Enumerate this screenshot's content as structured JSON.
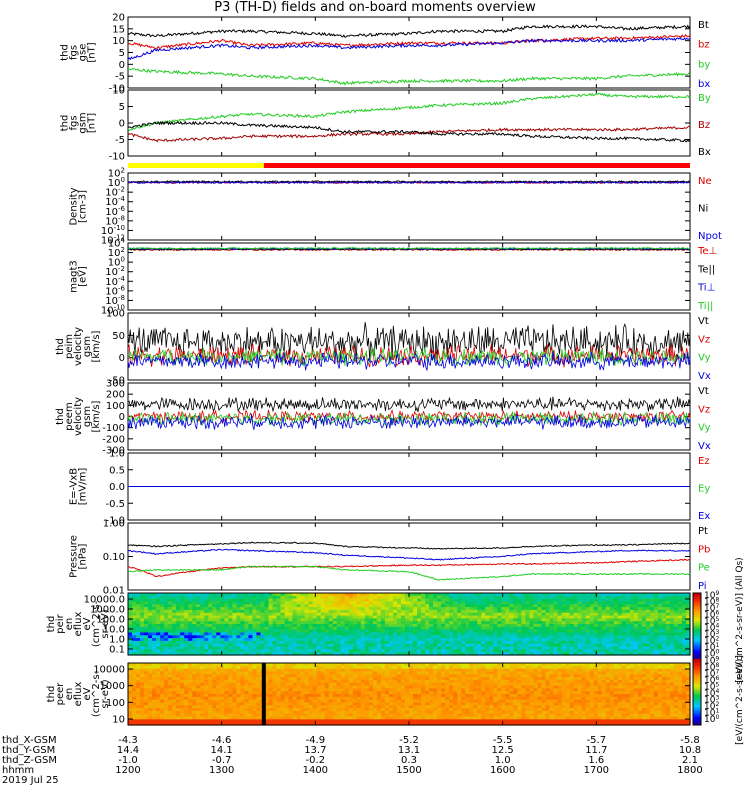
{
  "title": "P3 (TH-D) fields and on-board moments overview",
  "colors": {
    "black": "#000000",
    "red": "#e00000",
    "green": "#22cc22",
    "blue": "#0000e0",
    "darkred": "#a00000",
    "yellow": "#ffff00",
    "barred": "#ff0000"
  },
  "chart_data": [
    {
      "type": "line",
      "panel": "fgs-gse",
      "ylabel": [
        "thd",
        "fgs",
        "gse",
        "[nT]"
      ],
      "ylim": [
        -10,
        20
      ],
      "yticks": [
        "20",
        "15",
        "10",
        "5",
        "0",
        "-5",
        "-10"
      ],
      "x": [
        1200,
        1230,
        1300,
        1330,
        1400,
        1430,
        1500,
        1530,
        1600,
        1630,
        1700,
        1730,
        1800
      ],
      "series": [
        {
          "name": "Bt",
          "color": "#000000",
          "values": [
            13,
            12,
            14,
            14,
            13,
            12,
            13,
            14,
            14,
            16,
            16,
            15,
            16
          ]
        },
        {
          "name": "bz",
          "color": "#e00000",
          "values": [
            9,
            7,
            10,
            8,
            9,
            8,
            9,
            9,
            9,
            10,
            11,
            11,
            12
          ]
        },
        {
          "name": "by",
          "color": "#22cc22",
          "values": [
            -2,
            -3,
            -4,
            -5,
            -6,
            -8,
            -7,
            -7,
            -7,
            -6,
            -6,
            -5,
            -4
          ]
        },
        {
          "name": "bx",
          "color": "#0000e0",
          "values": [
            2,
            6,
            8,
            7,
            8,
            7,
            8,
            8,
            9,
            10,
            10,
            10,
            11
          ]
        }
      ]
    },
    {
      "type": "line",
      "panel": "fgs-gsm",
      "ylabel": [
        "thd",
        "fgs",
        "gsm",
        "[nT]"
      ],
      "ylim": [
        -15,
        15
      ],
      "yticks": [
        "10",
        "5",
        "0",
        "-5",
        "-10"
      ],
      "x": [
        1200,
        1230,
        1300,
        1330,
        1400,
        1430,
        1500,
        1530,
        1600,
        1630,
        1700,
        1730,
        1800
      ],
      "series": [
        {
          "name": "By",
          "color": "#22cc22",
          "values": [
            -3,
            0,
            3,
            4,
            3,
            5,
            7,
            8,
            9,
            11,
            13,
            12,
            12
          ]
        },
        {
          "name": "Bz",
          "color": "#a00000",
          "values": [
            -5,
            -8,
            -7,
            -6,
            -6,
            -5,
            -5,
            -4,
            -3,
            -3,
            -3,
            -3,
            -2
          ]
        },
        {
          "name": "Bx",
          "color": "#000000",
          "values": [
            -2,
            0,
            0,
            -1,
            -2,
            -4,
            -4,
            -5,
            -5,
            -6,
            -7,
            -7,
            -8
          ]
        }
      ]
    },
    {
      "type": "bar",
      "panel": "mode-bar",
      "segments": [
        {
          "from": 1200,
          "to": 1345,
          "color": "#ffff00"
        },
        {
          "from": 1345,
          "to": 1800,
          "color": "#ff0000"
        }
      ]
    },
    {
      "type": "line",
      "panel": "density",
      "scale": "log",
      "ylabel": [
        "Density",
        "[cm-3]"
      ],
      "ylim": [
        -12,
        2
      ],
      "yticks": [
        "10^2",
        "10^0",
        "10^-2",
        "10^-4",
        "10^-6",
        "10^-8",
        "10^-10",
        "10^-12"
      ],
      "series": [
        {
          "name": "Ne",
          "color": "#e00000"
        },
        {
          "name": "Ni",
          "color": "#000000"
        },
        {
          "name": "Npot",
          "color": "#0000e0"
        }
      ]
    },
    {
      "type": "line",
      "panel": "temperature",
      "scale": "log",
      "ylabel": [
        "magt3",
        "[eV]"
      ],
      "ylim": [
        -10,
        4
      ],
      "yticks": [
        "10^4",
        "10^2",
        "10^0",
        "10^-2",
        "10^-4",
        "10^-6",
        "10^-8",
        "10^-10"
      ],
      "series": [
        {
          "name": "Te⊥",
          "color": "#e00000"
        },
        {
          "name": "Te||",
          "color": "#000000"
        },
        {
          "name": "Ti⊥",
          "color": "#0000e0"
        },
        {
          "name": "Ti||",
          "color": "#22cc22"
        }
      ]
    },
    {
      "type": "line",
      "panel": "peim-velocity",
      "ylabel": [
        "thd",
        "peim",
        "velocity",
        "gsm",
        "[km/s]"
      ],
      "ylim": [
        -50,
        100
      ],
      "yticks": [
        "100",
        "50",
        "0",
        "-50"
      ],
      "series": [
        {
          "name": "Vt",
          "color": "#000000",
          "level": 35,
          "spread": 30
        },
        {
          "name": "Vz",
          "color": "#e00000",
          "level": 5,
          "spread": 18
        },
        {
          "name": "Vy",
          "color": "#22cc22",
          "level": 2,
          "spread": 15
        },
        {
          "name": "Vx",
          "color": "#0000e0",
          "level": -8,
          "spread": 15
        }
      ]
    },
    {
      "type": "line",
      "panel": "peem-velocity",
      "ylabel": [
        "thd",
        "peem",
        "velocity",
        "gsm",
        "[km/s]"
      ],
      "ylim": [
        -300,
        300
      ],
      "yticks": [
        "300",
        "200",
        "100",
        "0",
        "-100",
        "-200",
        "-300"
      ],
      "series": [
        {
          "name": "Vt",
          "color": "#000000",
          "level": 110,
          "spread": 50
        },
        {
          "name": "Vz",
          "color": "#e00000",
          "level": 0,
          "spread": 40
        },
        {
          "name": "Vy",
          "color": "#22cc22",
          "level": -20,
          "spread": 45
        },
        {
          "name": "Vx",
          "color": "#0000e0",
          "level": -50,
          "spread": 50
        }
      ]
    },
    {
      "type": "line",
      "panel": "efield",
      "ylabel": [
        "E=-VxB",
        "[mV/m]"
      ],
      "ylim": [
        -1,
        1
      ],
      "yticks": [
        "1.0",
        "0.5",
        "0.0",
        "-0.5",
        "-1.0"
      ],
      "series": [
        {
          "name": "Ez",
          "color": "#e00000"
        },
        {
          "name": "Ey",
          "color": "#22cc22"
        },
        {
          "name": "Ex",
          "color": "#0000e0"
        }
      ]
    },
    {
      "type": "line",
      "panel": "pressure",
      "scale": "log",
      "ylabel": [
        "Pressure",
        "[nPa]"
      ],
      "ylim": [
        0.01,
        1.0
      ],
      "yticks": [
        "1.00",
        "0.10",
        "0.01"
      ],
      "x": [
        1200,
        1230,
        1300,
        1330,
        1400,
        1430,
        1500,
        1530,
        1600,
        1630,
        1700,
        1730,
        1800
      ],
      "series": [
        {
          "name": "Pt",
          "color": "#000000",
          "values": [
            0.22,
            0.2,
            0.24,
            0.26,
            0.25,
            0.2,
            0.18,
            0.17,
            0.18,
            0.2,
            0.22,
            0.22,
            0.25
          ]
        },
        {
          "name": "Pb",
          "color": "#e00000",
          "values": [
            0.05,
            0.025,
            0.045,
            0.05,
            0.05,
            0.05,
            0.055,
            0.055,
            0.06,
            0.06,
            0.065,
            0.07,
            0.08
          ]
        },
        {
          "name": "Pe",
          "color": "#22cc22",
          "values": [
            0.035,
            0.04,
            0.04,
            0.05,
            0.05,
            0.04,
            0.035,
            0.02,
            0.025,
            0.03,
            0.03,
            0.03,
            0.03
          ]
        },
        {
          "name": "Pi",
          "color": "#0000e0",
          "values": [
            0.15,
            0.12,
            0.16,
            0.15,
            0.13,
            0.11,
            0.09,
            0.08,
            0.1,
            0.12,
            0.14,
            0.15,
            0.15
          ]
        }
      ]
    },
    {
      "type": "heatmap",
      "panel": "peir-spectrogram",
      "ylabel": [
        "thd",
        "peir",
        "en",
        "eflux",
        "eV",
        "(cm^2-s-",
        "sr-eV)"
      ],
      "yticks": [
        "10000.0",
        "1000.0",
        "100.0",
        "10.0",
        "1.0",
        "0.1"
      ]
    },
    {
      "type": "heatmap",
      "panel": "peer-spectrogram",
      "ylabel": [
        "thd",
        "peer",
        "en",
        "eflux",
        "eV",
        "(cm^2-s-",
        "sr-eV)"
      ],
      "yticks": [
        "10000",
        "1000",
        "100",
        "10"
      ]
    }
  ],
  "colorbar": {
    "tick_labels": [
      "10^9",
      "10^8",
      "10^7",
      "10^6",
      "10^5",
      "10^4",
      "10^3",
      "10^2",
      "10^1",
      "10^0",
      "10^9",
      "10^8",
      "10^7",
      "10^6",
      "10^5",
      "10^4",
      "10^3",
      "10^2",
      "10^1",
      "10^0"
    ],
    "label_top": "[eV/(cm^2-s-sr-eV)] (All Qs)",
    "label_bottom": "[eV/(cm^2-s-sr-eV)]"
  },
  "footer": {
    "row_labels": [
      "thd_X-GSM",
      "thd_Y-GSM",
      "thd_Z-GSM",
      "hhmm",
      "2019 Jul 25"
    ],
    "x_gsm": [
      "-4.3",
      "-4.6",
      "-4.9",
      "-5.2",
      "-5.5",
      "-5.7",
      "-5.8"
    ],
    "y_gsm": [
      "14.4",
      "14.1",
      "13.7",
      "13.1",
      "12.5",
      "11.7",
      "10.8"
    ],
    "z_gsm": [
      "-1.0",
      "-0.7",
      "-0.2",
      "0.3",
      "1.0",
      "1.6",
      "2.1"
    ],
    "hhmm": [
      "1200",
      "1300",
      "1400",
      "1500",
      "1600",
      "1700",
      "1800"
    ]
  }
}
